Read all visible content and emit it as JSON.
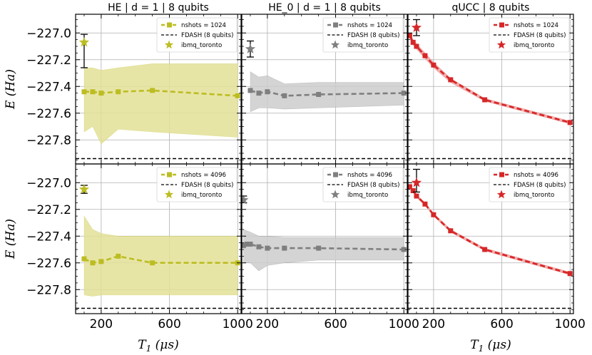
{
  "chart_data": {
    "type": "line",
    "shared_x": {
      "label": "T_1 (μs)",
      "label_parts": [
        "T",
        "1",
        "(μs)"
      ],
      "ticks": [
        200,
        600,
        1000
      ],
      "tick_labels": [
        "200",
        "600",
        "1000"
      ],
      "xlim": [
        50,
        1020
      ]
    },
    "shared_y": {
      "label": "E (Ha)",
      "label_parts": [
        "E",
        "(Ha)"
      ],
      "ticks": [
        -227.0,
        -227.2,
        -227.4,
        -227.6,
        -227.8
      ],
      "tick_labels": [
        "−227.0",
        "−227.2",
        "−227.4",
        "−227.6",
        "−227.8"
      ],
      "ylim": [
        -227.98,
        -226.86
      ]
    },
    "fdash_value": -227.94,
    "grid": true,
    "legend_placement": "top-right",
    "panels": [
      {
        "title": "HE | d = 1 | 8 qubits",
        "nshots_label": "nshots = 1024",
        "fdash_label": "FDASH (8 qubits)",
        "star_label": "ibmq_toronto",
        "color": "#bcbd22",
        "band_color": "#e3e196",
        "x": [
          100,
          150,
          200,
          300,
          500,
          1000
        ],
        "y": [
          -227.44,
          -227.44,
          -227.45,
          -227.44,
          -227.43,
          -227.47
        ],
        "band_low": [
          -227.74,
          -227.7,
          -227.83,
          -227.72,
          -227.74,
          -227.78
        ],
        "band_high": [
          -227.26,
          -227.26,
          -227.28,
          -227.26,
          -227.23,
          -227.23
        ],
        "star": {
          "x": 100,
          "y": -227.07,
          "err_low": -227.26,
          "err_high": -227.01
        }
      },
      {
        "title": "HE_0 | d = 1 | 8 qubits",
        "nshots_label": "nshots = 1024",
        "fdash_label": "FDASH (8 qubits)",
        "star_label": "ibmq_toronto",
        "color": "#7f7f7f",
        "band_color": "#cccccc",
        "x": [
          100,
          150,
          200,
          300,
          500,
          1000
        ],
        "y": [
          -227.43,
          -227.45,
          -227.44,
          -227.47,
          -227.46,
          -227.45
        ],
        "band_low": [
          -227.59,
          -227.56,
          -227.56,
          -227.57,
          -227.56,
          -227.54
        ],
        "band_high": [
          -227.29,
          -227.33,
          -227.32,
          -227.38,
          -227.37,
          -227.37
        ],
        "star": {
          "x": 100,
          "y": -227.12,
          "err_low": -227.18,
          "err_high": -227.06
        }
      },
      {
        "title": "qUCC | 8 qubits",
        "nshots_label": "nshots = 1024",
        "fdash_label": "FDASH (8 qubits)",
        "star_label": "ibmq_toronto",
        "color": "#d62728",
        "band_color": "#f2a3a3",
        "x": [
          60,
          80,
          100,
          150,
          200,
          300,
          500,
          1000
        ],
        "y": [
          -227.02,
          -227.07,
          -227.1,
          -227.17,
          -227.24,
          -227.35,
          -227.5,
          -227.67
        ],
        "band_low": [
          -227.04,
          -227.09,
          -227.12,
          -227.19,
          -227.26,
          -227.37,
          -227.51,
          -227.68
        ],
        "band_high": [
          -227.0,
          -227.05,
          -227.08,
          -227.15,
          -227.22,
          -227.34,
          -227.49,
          -227.66
        ],
        "star": {
          "x": 100,
          "y": -226.96,
          "err_low": -227.02,
          "err_high": -226.9
        }
      },
      {
        "title": "",
        "nshots_label": "nshots = 4096",
        "fdash_label": "FDASH (8 qubits)",
        "star_label": "ibmq_toronto",
        "color": "#bcbd22",
        "band_color": "#e3e196",
        "x": [
          100,
          150,
          200,
          300,
          500,
          1000
        ],
        "y": [
          -227.57,
          -227.6,
          -227.59,
          -227.55,
          -227.6,
          -227.6
        ],
        "band_low": [
          -227.84,
          -227.85,
          -227.84,
          -227.84,
          -227.84,
          -227.84
        ],
        "band_high": [
          -227.25,
          -227.35,
          -227.38,
          -227.4,
          -227.4,
          -227.4
        ],
        "star": {
          "x": 100,
          "y": -227.05,
          "err_low": -227.08,
          "err_high": -227.02
        }
      },
      {
        "title": "",
        "nshots_label": "nshots = 4096",
        "fdash_label": "FDASH (8 qubits)",
        "star_label": "ibmq_toronto",
        "color": "#7f7f7f",
        "band_color": "#cccccc",
        "x": [
          60,
          80,
          100,
          150,
          200,
          300,
          500,
          1000
        ],
        "y": [
          -227.47,
          -227.46,
          -227.46,
          -227.48,
          -227.49,
          -227.49,
          -227.49,
          -227.5
        ],
        "band_low": [
          -227.6,
          -227.6,
          -227.6,
          -227.66,
          -227.62,
          -227.6,
          -227.58,
          -227.58
        ],
        "band_high": [
          -227.35,
          -227.36,
          -227.37,
          -227.4,
          -227.4,
          -227.41,
          -227.41,
          -227.41
        ],
        "star": {
          "x": 60,
          "y": -227.13,
          "err_low": -227.15,
          "err_high": -227.1
        }
      },
      {
        "title": "",
        "nshots_label": "nshots = 4096",
        "fdash_label": "FDASH (8 qubits)",
        "star_label": "ibmq_toronto",
        "color": "#d62728",
        "band_color": "#f2a3a3",
        "x": [
          60,
          80,
          100,
          150,
          200,
          300,
          500,
          1000
        ],
        "y": [
          -227.03,
          -227.06,
          -227.1,
          -227.16,
          -227.24,
          -227.36,
          -227.5,
          -227.68
        ],
        "band_low": [
          -227.04,
          -227.07,
          -227.11,
          -227.17,
          -227.25,
          -227.37,
          -227.51,
          -227.69
        ],
        "band_high": [
          -227.02,
          -227.05,
          -227.09,
          -227.15,
          -227.23,
          -227.35,
          -227.49,
          -227.67
        ],
        "star": {
          "x": 100,
          "y": -227.0,
          "err_low": -227.07,
          "err_high": -226.9
        }
      }
    ]
  }
}
